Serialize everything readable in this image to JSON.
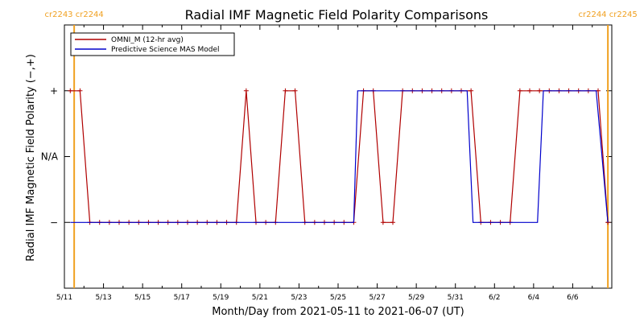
{
  "chart_data": {
    "type": "line",
    "title": "Radial IMF Magnetic Field Polarity Comparisons",
    "xlabel": "Month/Day from 2021-05-11 to 2021-06-07 (UT)",
    "ylabel": "Radial IMF Magnetic Field Polarity (−,+)",
    "x_tick_labels": [
      "5/11",
      "5/13",
      "5/15",
      "5/17",
      "5/19",
      "5/21",
      "5/23",
      "5/25",
      "5/27",
      "5/29",
      "5/31",
      "6/2",
      "6/4",
      "6/6"
    ],
    "x_tick_days": [
      0,
      2,
      4,
      6,
      8,
      10,
      12,
      14,
      16,
      18,
      20,
      22,
      24,
      26
    ],
    "xlim_days": [
      0,
      28
    ],
    "y_categories": [
      "−",
      "N/A",
      "+"
    ],
    "y_values": [
      -1,
      0,
      1
    ],
    "ylim": [
      -2,
      2
    ],
    "carrington_markers": [
      {
        "day": 0.5,
        "label": "cr2243 cr2244"
      },
      {
        "day": 27.8,
        "label": "cr2244 cr2245"
      }
    ],
    "legend": [
      {
        "name": "OMNI_M (12-hr avg)",
        "color": "#b00000"
      },
      {
        "name": "Predictive Science MAS Model",
        "color": "#0000cc"
      }
    ],
    "series": [
      {
        "name": "OMNI_M (12-hr avg)",
        "color": "#b00000",
        "marker": "+",
        "points": [
          [
            0.3,
            1
          ],
          [
            0.8,
            1
          ],
          [
            1.3,
            -1
          ],
          [
            1.8,
            -1
          ],
          [
            2.3,
            -1
          ],
          [
            2.8,
            -1
          ],
          [
            3.3,
            -1
          ],
          [
            3.8,
            -1
          ],
          [
            4.3,
            -1
          ],
          [
            4.8,
            -1
          ],
          [
            5.3,
            -1
          ],
          [
            5.8,
            -1
          ],
          [
            6.3,
            -1
          ],
          [
            6.8,
            -1
          ],
          [
            7.3,
            -1
          ],
          [
            7.8,
            -1
          ],
          [
            8.3,
            -1
          ],
          [
            8.8,
            -1
          ],
          [
            9.3,
            1
          ],
          [
            9.8,
            -1
          ],
          [
            10.3,
            -1
          ],
          [
            10.8,
            -1
          ],
          [
            11.3,
            1
          ],
          [
            11.8,
            1
          ],
          [
            12.3,
            -1
          ],
          [
            12.8,
            -1
          ],
          [
            13.3,
            -1
          ],
          [
            13.8,
            -1
          ],
          [
            14.3,
            -1
          ],
          [
            14.8,
            -1
          ],
          [
            15.3,
            1
          ],
          [
            15.8,
            1
          ],
          [
            16.3,
            -1
          ],
          [
            16.8,
            -1
          ],
          [
            17.3,
            1
          ],
          [
            17.8,
            1
          ],
          [
            18.3,
            1
          ],
          [
            18.8,
            1
          ],
          [
            19.3,
            1
          ],
          [
            19.8,
            1
          ],
          [
            20.3,
            1
          ],
          [
            20.8,
            1
          ],
          [
            21.3,
            -1
          ],
          [
            21.8,
            -1
          ],
          [
            22.3,
            -1
          ],
          [
            22.8,
            -1
          ],
          [
            23.3,
            1
          ],
          [
            23.8,
            1
          ],
          [
            24.3,
            1
          ],
          [
            24.8,
            1
          ],
          [
            25.3,
            1
          ],
          [
            25.8,
            1
          ],
          [
            26.3,
            1
          ],
          [
            26.8,
            1
          ],
          [
            27.3,
            1
          ],
          [
            27.8,
            -1
          ]
        ]
      },
      {
        "name": "Predictive Science MAS Model",
        "color": "#0000cc",
        "marker": "none",
        "points": [
          [
            0.3,
            -1
          ],
          [
            14.8,
            -1
          ],
          [
            15.0,
            1
          ],
          [
            20.6,
            1
          ],
          [
            20.9,
            -1
          ],
          [
            24.2,
            -1
          ],
          [
            24.5,
            1
          ],
          [
            27.2,
            1
          ],
          [
            27.8,
            -1
          ]
        ]
      }
    ]
  }
}
